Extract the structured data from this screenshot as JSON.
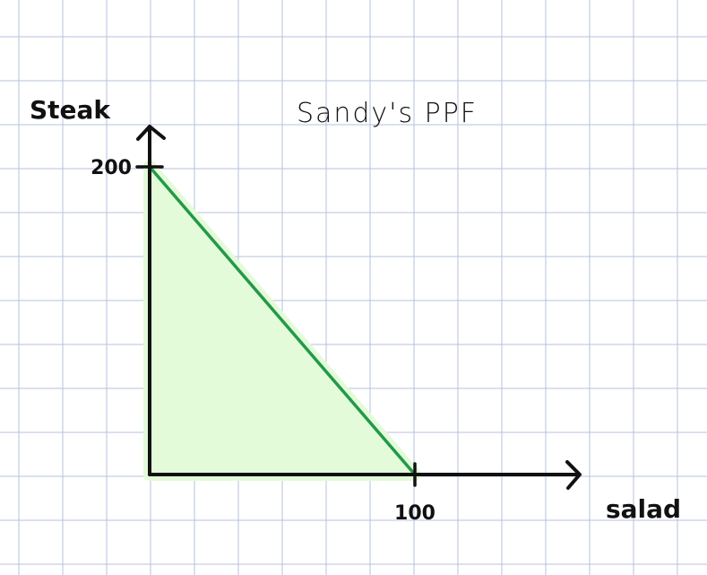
{
  "chart_data": {
    "type": "area",
    "title": "Sandy's PPF",
    "xlabel": "salad",
    "ylabel": "Steak",
    "xlim": [
      0,
      100
    ],
    "ylim": [
      0,
      200
    ],
    "grid": true,
    "series": [
      {
        "x": [
          0,
          100
        ],
        "y": [
          200,
          0
        ]
      }
    ],
    "x_tick_labels": [
      {
        "value": 100,
        "label": "100"
      }
    ],
    "y_tick_labels": [
      {
        "value": 200,
        "label": "200"
      }
    ],
    "colors": {
      "frontier_line": "#23994a",
      "area_fill": "#e3fbd8",
      "grid": "#b4c2dc",
      "axes": "#111111"
    }
  }
}
